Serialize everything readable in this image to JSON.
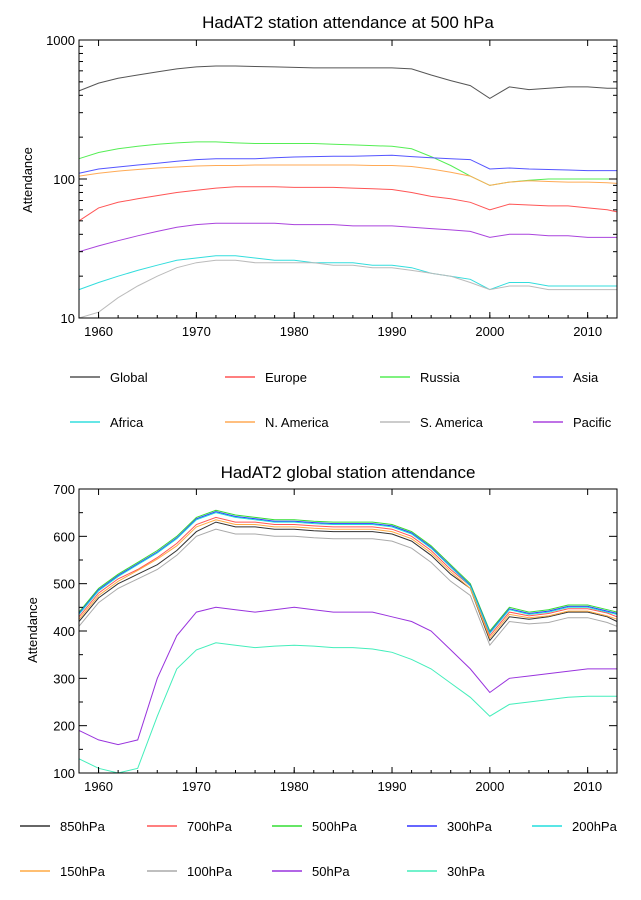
{
  "chart_data": [
    {
      "type": "line",
      "title": "HadAT2 station attendance at 500 hPa",
      "xlabel": "",
      "ylabel": "Attendance",
      "yscale": "log",
      "xlim": [
        1958,
        2013
      ],
      "ylim": [
        10,
        1000
      ],
      "xticks": [
        "1960",
        "1970",
        "1980",
        "1990",
        "2000",
        "2010"
      ],
      "yticks": [
        "10",
        "100",
        "1000"
      ],
      "legend_placement": "below",
      "x": [
        1958,
        1960,
        1962,
        1964,
        1966,
        1968,
        1970,
        1972,
        1974,
        1976,
        1978,
        1980,
        1982,
        1984,
        1986,
        1988,
        1990,
        1992,
        1994,
        1996,
        1998,
        2000,
        2002,
        2004,
        2006,
        2008,
        2010,
        2012,
        2013
      ],
      "series": [
        {
          "name": "Global",
          "color": "#555555",
          "values": [
            430,
            490,
            530,
            560,
            590,
            620,
            640,
            650,
            650,
            645,
            640,
            635,
            630,
            630,
            630,
            630,
            630,
            620,
            560,
            510,
            470,
            380,
            460,
            440,
            450,
            460,
            460,
            450,
            450
          ]
        },
        {
          "name": "Europe",
          "color": "#ff5555",
          "values": [
            50,
            62,
            68,
            72,
            76,
            80,
            83,
            86,
            88,
            88,
            88,
            87,
            87,
            87,
            86,
            85,
            84,
            80,
            75,
            72,
            68,
            60,
            66,
            65,
            64,
            64,
            62,
            60,
            58
          ]
        },
        {
          "name": "Russia",
          "color": "#55ee55",
          "values": [
            140,
            155,
            165,
            172,
            178,
            182,
            185,
            185,
            182,
            180,
            180,
            180,
            180,
            178,
            176,
            174,
            172,
            165,
            145,
            125,
            105,
            90,
            95,
            98,
            100,
            100,
            100,
            100,
            100
          ]
        },
        {
          "name": "Asia",
          "color": "#5555ff",
          "values": [
            110,
            118,
            122,
            126,
            130,
            134,
            138,
            140,
            140,
            140,
            142,
            144,
            145,
            146,
            146,
            147,
            148,
            145,
            142,
            140,
            138,
            118,
            120,
            118,
            117,
            116,
            115,
            115,
            115
          ]
        },
        {
          "name": "Africa",
          "color": "#33dddd",
          "values": [
            16,
            18,
            20,
            22,
            24,
            26,
            27,
            28,
            28,
            27,
            26,
            26,
            25,
            25,
            25,
            24,
            24,
            23,
            21,
            20,
            19,
            16,
            18,
            18,
            17,
            17,
            17,
            17,
            17
          ]
        },
        {
          "name": "N. America",
          "color": "#ffaa55",
          "values": [
            105,
            110,
            114,
            117,
            120,
            122,
            124,
            125,
            125,
            126,
            126,
            126,
            126,
            126,
            126,
            125,
            125,
            123,
            118,
            112,
            105,
            90,
            95,
            97,
            96,
            95,
            95,
            94,
            93
          ]
        },
        {
          "name": "S. America",
          "color": "#bbbbbb",
          "values": [
            10,
            11,
            14,
            17,
            20,
            23,
            25,
            26,
            26,
            25,
            25,
            25,
            25,
            24,
            24,
            23,
            23,
            22,
            21,
            20,
            18,
            16,
            17,
            17,
            16,
            16,
            16,
            16,
            16
          ]
        },
        {
          "name": "Pacific",
          "color": "#aa44dd",
          "values": [
            30,
            33,
            36,
            39,
            42,
            45,
            47,
            48,
            48,
            48,
            48,
            47,
            47,
            47,
            46,
            46,
            46,
            45,
            44,
            43,
            42,
            38,
            40,
            40,
            39,
            39,
            38,
            38,
            38
          ]
        }
      ]
    },
    {
      "type": "line",
      "title": "HadAT2 global station attendance",
      "xlabel": "",
      "ylabel": "Attendance",
      "xlim": [
        1958,
        2013
      ],
      "ylim": [
        100,
        700
      ],
      "xticks": [
        "1960",
        "1970",
        "1980",
        "1990",
        "2000",
        "2010"
      ],
      "yticks": [
        "100",
        "200",
        "300",
        "400",
        "500",
        "600",
        "700"
      ],
      "legend_placement": "below",
      "x": [
        1958,
        1960,
        1962,
        1964,
        1966,
        1968,
        1970,
        1972,
        1974,
        1976,
        1978,
        1980,
        1982,
        1984,
        1986,
        1988,
        1990,
        1992,
        1994,
        1996,
        1998,
        2000,
        2002,
        2004,
        2006,
        2008,
        2010,
        2012,
        2013
      ],
      "series": [
        {
          "name": "850hPa",
          "color": "#333333",
          "values": [
            420,
            470,
            500,
            520,
            540,
            570,
            610,
            630,
            620,
            620,
            615,
            615,
            612,
            610,
            610,
            610,
            605,
            590,
            560,
            520,
            490,
            380,
            430,
            425,
            430,
            440,
            440,
            430,
            420
          ]
        },
        {
          "name": "700hPa",
          "color": "#ff5555",
          "values": [
            430,
            480,
            510,
            530,
            555,
            585,
            625,
            640,
            630,
            630,
            625,
            625,
            622,
            620,
            620,
            620,
            615,
            600,
            570,
            530,
            495,
            390,
            440,
            432,
            437,
            447,
            447,
            438,
            430
          ]
        },
        {
          "name": "500hPa",
          "color": "#33dd33",
          "values": [
            440,
            490,
            520,
            545,
            570,
            600,
            640,
            655,
            645,
            640,
            635,
            635,
            632,
            630,
            630,
            630,
            625,
            610,
            580,
            540,
            500,
            400,
            450,
            440,
            445,
            455,
            455,
            445,
            440
          ]
        },
        {
          "name": "300hPa",
          "color": "#3333ff",
          "values": [
            437,
            487,
            517,
            542,
            567,
            597,
            637,
            652,
            642,
            637,
            632,
            632,
            629,
            627,
            627,
            627,
            622,
            607,
            577,
            537,
            497,
            397,
            447,
            437,
            442,
            452,
            452,
            442,
            437
          ]
        },
        {
          "name": "200hPa",
          "color": "#22dddd",
          "values": [
            435,
            485,
            515,
            540,
            565,
            595,
            635,
            650,
            640,
            635,
            630,
            630,
            627,
            625,
            625,
            625,
            620,
            605,
            575,
            535,
            495,
            395,
            445,
            435,
            440,
            450,
            450,
            440,
            435
          ]
        },
        {
          "name": "150hPa",
          "color": "#ffaa44",
          "values": [
            425,
            475,
            505,
            528,
            552,
            580,
            620,
            635,
            625,
            625,
            620,
            620,
            617,
            615,
            615,
            615,
            610,
            595,
            565,
            525,
            490,
            385,
            435,
            428,
            432,
            442,
            442,
            432,
            425
          ]
        },
        {
          "name": "100hPa",
          "color": "#aaaaaa",
          "values": [
            410,
            460,
            490,
            510,
            530,
            560,
            600,
            615,
            605,
            605,
            600,
            600,
            597,
            595,
            595,
            595,
            590,
            575,
            545,
            505,
            475,
            370,
            420,
            415,
            418,
            428,
            428,
            418,
            410
          ]
        },
        {
          "name": "50hPa",
          "color": "#9933dd",
          "values": [
            190,
            170,
            160,
            170,
            300,
            390,
            440,
            450,
            445,
            440,
            445,
            450,
            445,
            440,
            440,
            440,
            430,
            420,
            400,
            360,
            320,
            270,
            300,
            305,
            310,
            315,
            320,
            320,
            320
          ]
        },
        {
          "name": "30hPa",
          "color": "#44eebb",
          "values": [
            130,
            110,
            100,
            110,
            220,
            320,
            360,
            375,
            370,
            365,
            368,
            370,
            368,
            365,
            365,
            362,
            355,
            340,
            320,
            290,
            260,
            220,
            245,
            250,
            255,
            260,
            262,
            262,
            262
          ]
        }
      ]
    }
  ]
}
